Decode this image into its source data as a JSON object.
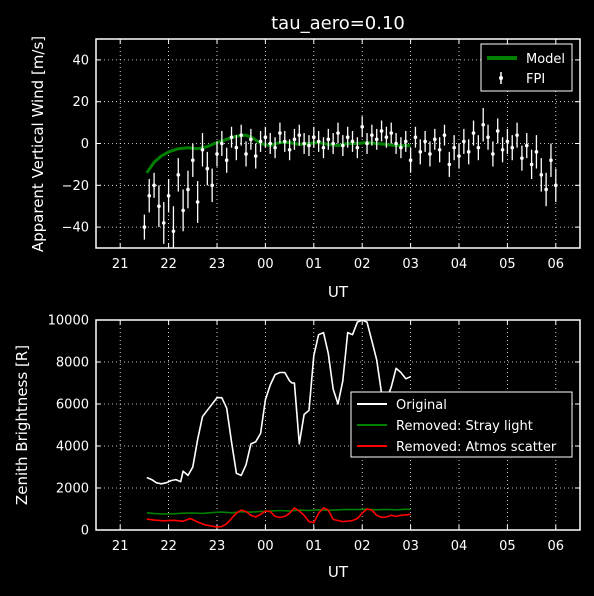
{
  "chart_data": [
    {
      "type": "line",
      "title": "tau_aero=0.10",
      "xlabel": "UT",
      "ylabel": "Apparent Vertical Wind [m/s]",
      "xlim": [
        20.5,
        30.5
      ],
      "ylim": [
        -50,
        50
      ],
      "xticks": [
        21,
        22,
        23,
        24,
        25,
        26,
        27,
        28,
        29,
        30
      ],
      "xtick_labels": [
        "21",
        "22",
        "23",
        "00",
        "01",
        "02",
        "03",
        "04",
        "05",
        "06"
      ],
      "yticks": [
        -40,
        -20,
        0,
        20,
        40
      ],
      "ytick_labels": [
        "−40",
        "−20",
        "0",
        "20",
        "40"
      ],
      "grid": true,
      "legend": "top-right",
      "series": [
        {
          "name": "Model",
          "color": "#008000",
          "x": [
            21.55,
            21.7,
            21.85,
            22.0,
            22.2,
            22.4,
            22.6,
            22.8,
            23.0,
            23.2,
            23.4,
            23.6,
            23.75,
            23.9,
            24.1,
            24.3,
            24.5,
            24.7,
            24.9,
            25.1,
            25.3,
            25.5,
            25.7,
            25.9,
            26.1,
            26.3,
            26.5,
            26.7,
            26.9,
            27.0
          ],
          "y": [
            -14,
            -9,
            -6,
            -4,
            -2.5,
            -2,
            -2.5,
            -1.5,
            0.5,
            2,
            3.5,
            4,
            2.5,
            0,
            -1,
            0.5,
            0.5,
            -0.5,
            0,
            0.5,
            -0.5,
            -1,
            0,
            0,
            0.5,
            0,
            -0.5,
            -1,
            -1,
            -1
          ]
        },
        {
          "name": "FPI",
          "color": "#ffffff",
          "marker": "errorbar",
          "x": [
            21.5,
            21.6,
            21.7,
            21.8,
            21.9,
            22.0,
            22.1,
            22.2,
            22.3,
            22.4,
            22.5,
            22.6,
            22.7,
            22.8,
            22.9,
            23.0,
            23.1,
            23.2,
            23.3,
            23.4,
            23.5,
            23.6,
            23.7,
            23.8,
            23.9,
            24.0,
            24.1,
            24.2,
            24.3,
            24.4,
            24.5,
            24.6,
            24.7,
            24.8,
            24.9,
            25.0,
            25.1,
            25.2,
            25.3,
            25.4,
            25.5,
            25.6,
            25.7,
            25.8,
            25.9,
            26.0,
            26.1,
            26.2,
            26.3,
            26.4,
            26.5,
            26.6,
            26.7,
            26.8,
            26.9,
            27.0,
            27.1,
            27.2,
            27.3,
            27.4,
            27.5,
            27.6,
            27.7,
            27.8,
            27.9,
            28.0,
            28.1,
            28.2,
            28.3,
            28.4,
            28.5,
            28.6,
            28.7,
            28.8,
            28.9,
            29.0,
            29.1,
            29.2,
            29.3,
            29.4,
            29.5,
            29.6,
            29.7,
            29.8,
            29.9,
            30.0
          ],
          "y": [
            -40,
            -25,
            -20,
            -30,
            -38,
            -25,
            -42,
            -15,
            -32,
            -22,
            -8,
            -28,
            -3,
            -12,
            -20,
            -5,
            0,
            -8,
            3,
            -2,
            4,
            -5,
            2,
            -6,
            1,
            3,
            0,
            -2,
            5,
            1,
            -3,
            2,
            4,
            0,
            -1,
            3,
            1,
            -2,
            2,
            0,
            5,
            -1,
            3,
            1,
            -2,
            8,
            0,
            4,
            2,
            6,
            3,
            5,
            0,
            -2,
            1,
            -8,
            3,
            -4,
            1,
            -5,
            2,
            -3,
            4,
            -10,
            -2,
            -6,
            1,
            -4,
            5,
            -2,
            9,
            3,
            -5,
            6,
            -3,
            1,
            -2,
            4,
            -7,
            -1,
            -10,
            -4,
            -15,
            -22,
            -8,
            -20
          ],
          "err": [
            6,
            8,
            6,
            10,
            10,
            8,
            12,
            8,
            10,
            9,
            8,
            10,
            8,
            8,
            8,
            6,
            6,
            6,
            5,
            6,
            5,
            6,
            5,
            6,
            5,
            5,
            5,
            5,
            5,
            5,
            5,
            5,
            5,
            5,
            5,
            5,
            5,
            5,
            5,
            5,
            5,
            5,
            5,
            5,
            5,
            5,
            5,
            5,
            5,
            5,
            5,
            5,
            5,
            5,
            5,
            6,
            5,
            6,
            5,
            6,
            5,
            6,
            5,
            6,
            6,
            6,
            6,
            6,
            6,
            6,
            8,
            6,
            6,
            6,
            6,
            6,
            6,
            6,
            6,
            6,
            7,
            8,
            8,
            8,
            8,
            8
          ]
        }
      ]
    },
    {
      "type": "line",
      "title": "",
      "xlabel": "UT",
      "ylabel": "Zenith Brightness [R]",
      "xlim": [
        20.5,
        30.5
      ],
      "ylim": [
        0,
        10000
      ],
      "xticks": [
        21,
        22,
        23,
        24,
        25,
        26,
        27,
        28,
        29,
        30
      ],
      "xtick_labels": [
        "21",
        "22",
        "23",
        "00",
        "01",
        "02",
        "03",
        "04",
        "05",
        "06"
      ],
      "yticks": [
        0,
        2000,
        4000,
        6000,
        8000,
        10000
      ],
      "ytick_labels": [
        "0",
        "2000",
        "4000",
        "6000",
        "8000",
        "10000"
      ],
      "grid": true,
      "legend": "center-right",
      "series": [
        {
          "name": "Original",
          "color": "#ffffff",
          "x": [
            21.55,
            21.65,
            21.75,
            21.85,
            21.95,
            22.05,
            22.15,
            22.25,
            22.3,
            22.4,
            22.5,
            22.6,
            22.7,
            22.8,
            22.9,
            23.0,
            23.1,
            23.2,
            23.3,
            23.4,
            23.5,
            23.6,
            23.7,
            23.8,
            23.9,
            24.0,
            24.1,
            24.2,
            24.3,
            24.4,
            24.5,
            24.55,
            24.6,
            24.7,
            24.8,
            24.9,
            25.0,
            25.1,
            25.2,
            25.3,
            25.4,
            25.5,
            25.6,
            25.7,
            25.8,
            25.9,
            26.0,
            26.1,
            26.2,
            26.3,
            26.4,
            26.5,
            26.6,
            26.7,
            26.8,
            26.9,
            27.0
          ],
          "y": [
            2500,
            2400,
            2250,
            2200,
            2250,
            2350,
            2400,
            2300,
            2800,
            2600,
            3000,
            4300,
            5400,
            5700,
            6000,
            6300,
            6300,
            5800,
            4200,
            2700,
            2600,
            3100,
            4100,
            4200,
            4600,
            6200,
            6900,
            7400,
            7500,
            7500,
            7100,
            7000,
            7000,
            4100,
            5500,
            5700,
            8300,
            9300,
            9400,
            8400,
            6700,
            6000,
            7100,
            9400,
            9300,
            9900,
            10000,
            9900,
            9000,
            8100,
            6500,
            6200,
            6800,
            7700,
            7500,
            7200,
            7300
          ]
        },
        {
          "name": "Removed: Stray light",
          "color": "#008000",
          "x": [
            21.55,
            21.7,
            21.9,
            22.1,
            22.3,
            22.5,
            22.7,
            22.9,
            23.1,
            23.3,
            23.5,
            23.7,
            23.9,
            24.1,
            24.3,
            24.5,
            24.7,
            24.9,
            25.1,
            25.3,
            25.5,
            25.7,
            25.9,
            26.1,
            26.3,
            26.5,
            26.7,
            26.9,
            27.0
          ],
          "y": [
            820,
            780,
            760,
            770,
            800,
            810,
            790,
            830,
            850,
            820,
            870,
            850,
            880,
            900,
            930,
            900,
            950,
            930,
            960,
            940,
            960,
            980,
            970,
            990,
            960,
            980,
            960,
            990,
            980
          ]
        },
        {
          "name": "Removed: Atmos scatter",
          "color": "#ff0000",
          "x": [
            21.55,
            21.7,
            21.9,
            22.1,
            22.3,
            22.45,
            22.6,
            22.75,
            22.9,
            23.0,
            23.1,
            23.2,
            23.3,
            23.4,
            23.5,
            23.6,
            23.7,
            23.8,
            23.9,
            24.0,
            24.1,
            24.2,
            24.3,
            24.4,
            24.5,
            24.6,
            24.7,
            24.8,
            24.9,
            25.0,
            25.1,
            25.2,
            25.3,
            25.4,
            25.5,
            25.6,
            25.7,
            25.8,
            25.9,
            26.0,
            26.1,
            26.2,
            26.3,
            26.4,
            26.5,
            26.6,
            26.7,
            26.8,
            26.9,
            27.0
          ],
          "y": [
            520,
            470,
            440,
            460,
            420,
            550,
            380,
            250,
            180,
            150,
            160,
            300,
            550,
            800,
            950,
            880,
            700,
            620,
            750,
            900,
            880,
            650,
            600,
            650,
            800,
            1050,
            900,
            700,
            400,
            350,
            800,
            1050,
            950,
            500,
            450,
            400,
            420,
            450,
            550,
            800,
            1000,
            950,
            700,
            600,
            620,
            700,
            650,
            700,
            720,
            750
          ]
        }
      ]
    }
  ]
}
